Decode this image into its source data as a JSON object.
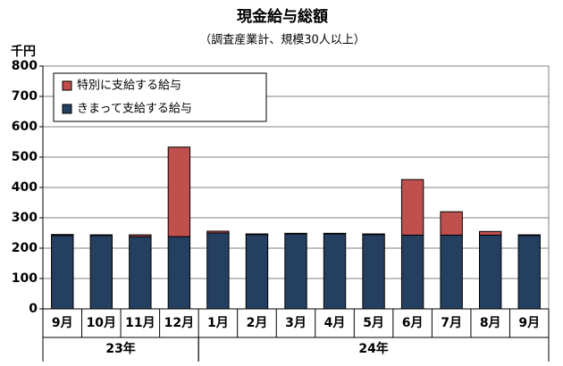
{
  "chart_data": {
    "type": "stacked_bar",
    "title": "現金給与総額",
    "subtitle": "（調査産業計、規模30人以上）",
    "y_unit": "千円",
    "categories": [
      "9月",
      "10月",
      "11月",
      "12月",
      "1月",
      "2月",
      "3月",
      "4月",
      "5月",
      "6月",
      "7月",
      "8月",
      "9月"
    ],
    "groups": [
      {
        "label": "23年",
        "span": 4
      },
      {
        "label": "24年",
        "span": 9
      }
    ],
    "series": [
      {
        "name": "きまって支給する給与",
        "color": "#243f60",
        "values": [
          242,
          242,
          238,
          238,
          250,
          245,
          247,
          247,
          245,
          243,
          243,
          243,
          242
        ]
      },
      {
        "name": "特別に支給する給与",
        "color": "#c0504d",
        "values": [
          3,
          2,
          6,
          295,
          6,
          2,
          2,
          2,
          2,
          183,
          77,
          12,
          2
        ]
      }
    ],
    "ylim": [
      0,
      800
    ],
    "yticks": [
      0,
      100,
      200,
      300,
      400,
      500,
      600,
      700,
      800
    ],
    "grid": true,
    "legend": "upper left"
  }
}
